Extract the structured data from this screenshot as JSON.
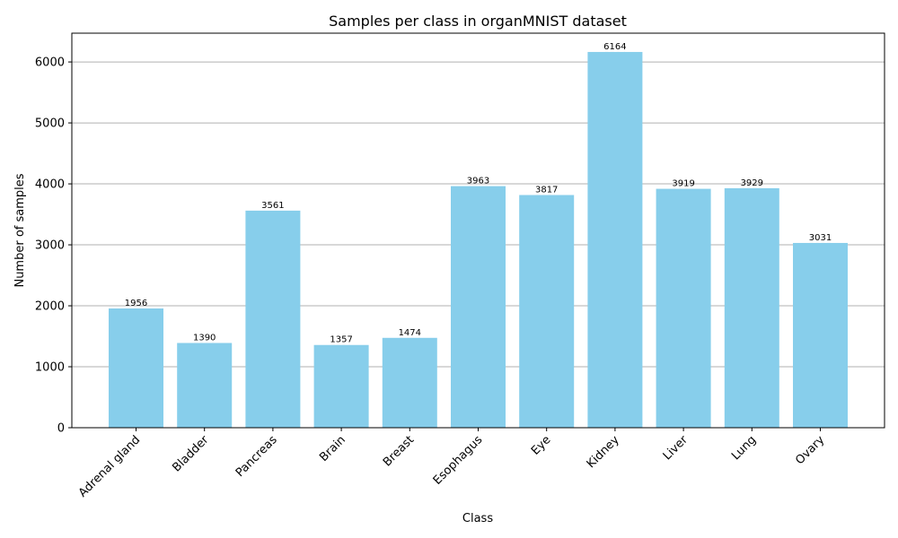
{
  "chart_data": {
    "type": "bar",
    "title": "Samples per class in organMNIST dataset",
    "xlabel": "Class",
    "ylabel": "Number of samples",
    "categories": [
      "Adrenal gland",
      "Bladder",
      "Pancreas",
      "Brain",
      "Breast",
      "Esophagus",
      "Eye",
      "Kidney",
      "Liver",
      "Lung",
      "Ovary"
    ],
    "values": [
      1956,
      1390,
      3561,
      1357,
      1474,
      3963,
      3817,
      6164,
      3919,
      3929,
      3031
    ],
    "value_labels": [
      "1956",
      "1390",
      "3561",
      "1357",
      "1474",
      "3963",
      "3817",
      "6164",
      "3919",
      "3929",
      "3031"
    ],
    "ylim": [
      0,
      6472
    ],
    "yticks": [
      0,
      1000,
      2000,
      3000,
      4000,
      5000,
      6000
    ],
    "ytick_labels": [
      "0",
      "1000",
      "2000",
      "3000",
      "4000",
      "5000",
      "6000"
    ],
    "grid": "y",
    "bar_color": "#87CEEB"
  }
}
